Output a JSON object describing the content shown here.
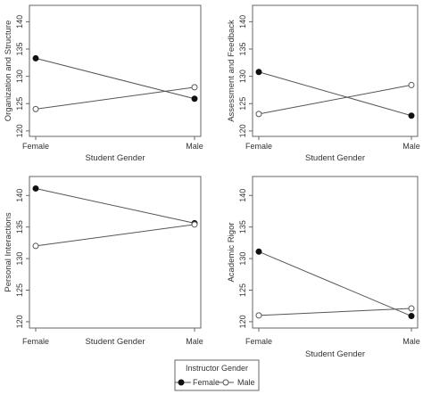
{
  "chart_data": [
    {
      "type": "line",
      "xlabel": "Student Gender",
      "ylabel": "Organization and Structure",
      "categories": [
        "Female",
        "Male"
      ],
      "ylim": [
        119,
        143
      ],
      "yticks": [
        120,
        125,
        130,
        135,
        140
      ],
      "series": [
        {
          "name": "Female",
          "marker": "filled-circle",
          "values": [
            133.3,
            125.9
          ]
        },
        {
          "name": "Male",
          "marker": "open-circle",
          "values": [
            124.0,
            128.0
          ]
        }
      ]
    },
    {
      "type": "line",
      "xlabel": "Student Gender",
      "ylabel": "Assessment and Feedback",
      "categories": [
        "Female",
        "Male"
      ],
      "ylim": [
        119,
        143
      ],
      "yticks": [
        120,
        125,
        130,
        135,
        140
      ],
      "series": [
        {
          "name": "Female",
          "marker": "filled-circle",
          "values": [
            130.8,
            122.8
          ]
        },
        {
          "name": "Male",
          "marker": "open-circle",
          "values": [
            123.1,
            128.4
          ]
        }
      ]
    },
    {
      "type": "line",
      "xlabel": "Student Gender",
      "ylabel": "Personal Interactions",
      "categories": [
        "Female",
        "Male"
      ],
      "ylim": [
        119,
        143
      ],
      "yticks": [
        120,
        125,
        130,
        135,
        140
      ],
      "series": [
        {
          "name": "Female",
          "marker": "filled-circle",
          "values": [
            141.1,
            135.6
          ]
        },
        {
          "name": "Male",
          "marker": "open-circle",
          "values": [
            132.0,
            135.4
          ]
        }
      ]
    },
    {
      "type": "line",
      "xlabel": "Student Gender",
      "ylabel": "Academic Rigor",
      "categories": [
        "Female",
        "Male"
      ],
      "ylim": [
        119,
        143
      ],
      "yticks": [
        120,
        125,
        130,
        135,
        140
      ],
      "series": [
        {
          "name": "Female",
          "marker": "filled-circle",
          "values": [
            131.1,
            120.9
          ]
        },
        {
          "name": "Male",
          "marker": "open-circle",
          "values": [
            121.0,
            122.1
          ]
        }
      ]
    }
  ],
  "legend": {
    "title": "Instructor Gender",
    "position": "bottom-center",
    "entries": [
      {
        "label": "Female",
        "marker": "filled-circle"
      },
      {
        "label": "Male",
        "marker": "open-circle"
      }
    ]
  },
  "colors": {
    "line": "#555555",
    "axis": "#666666",
    "text": "#333333",
    "background": "#ffffff"
  }
}
